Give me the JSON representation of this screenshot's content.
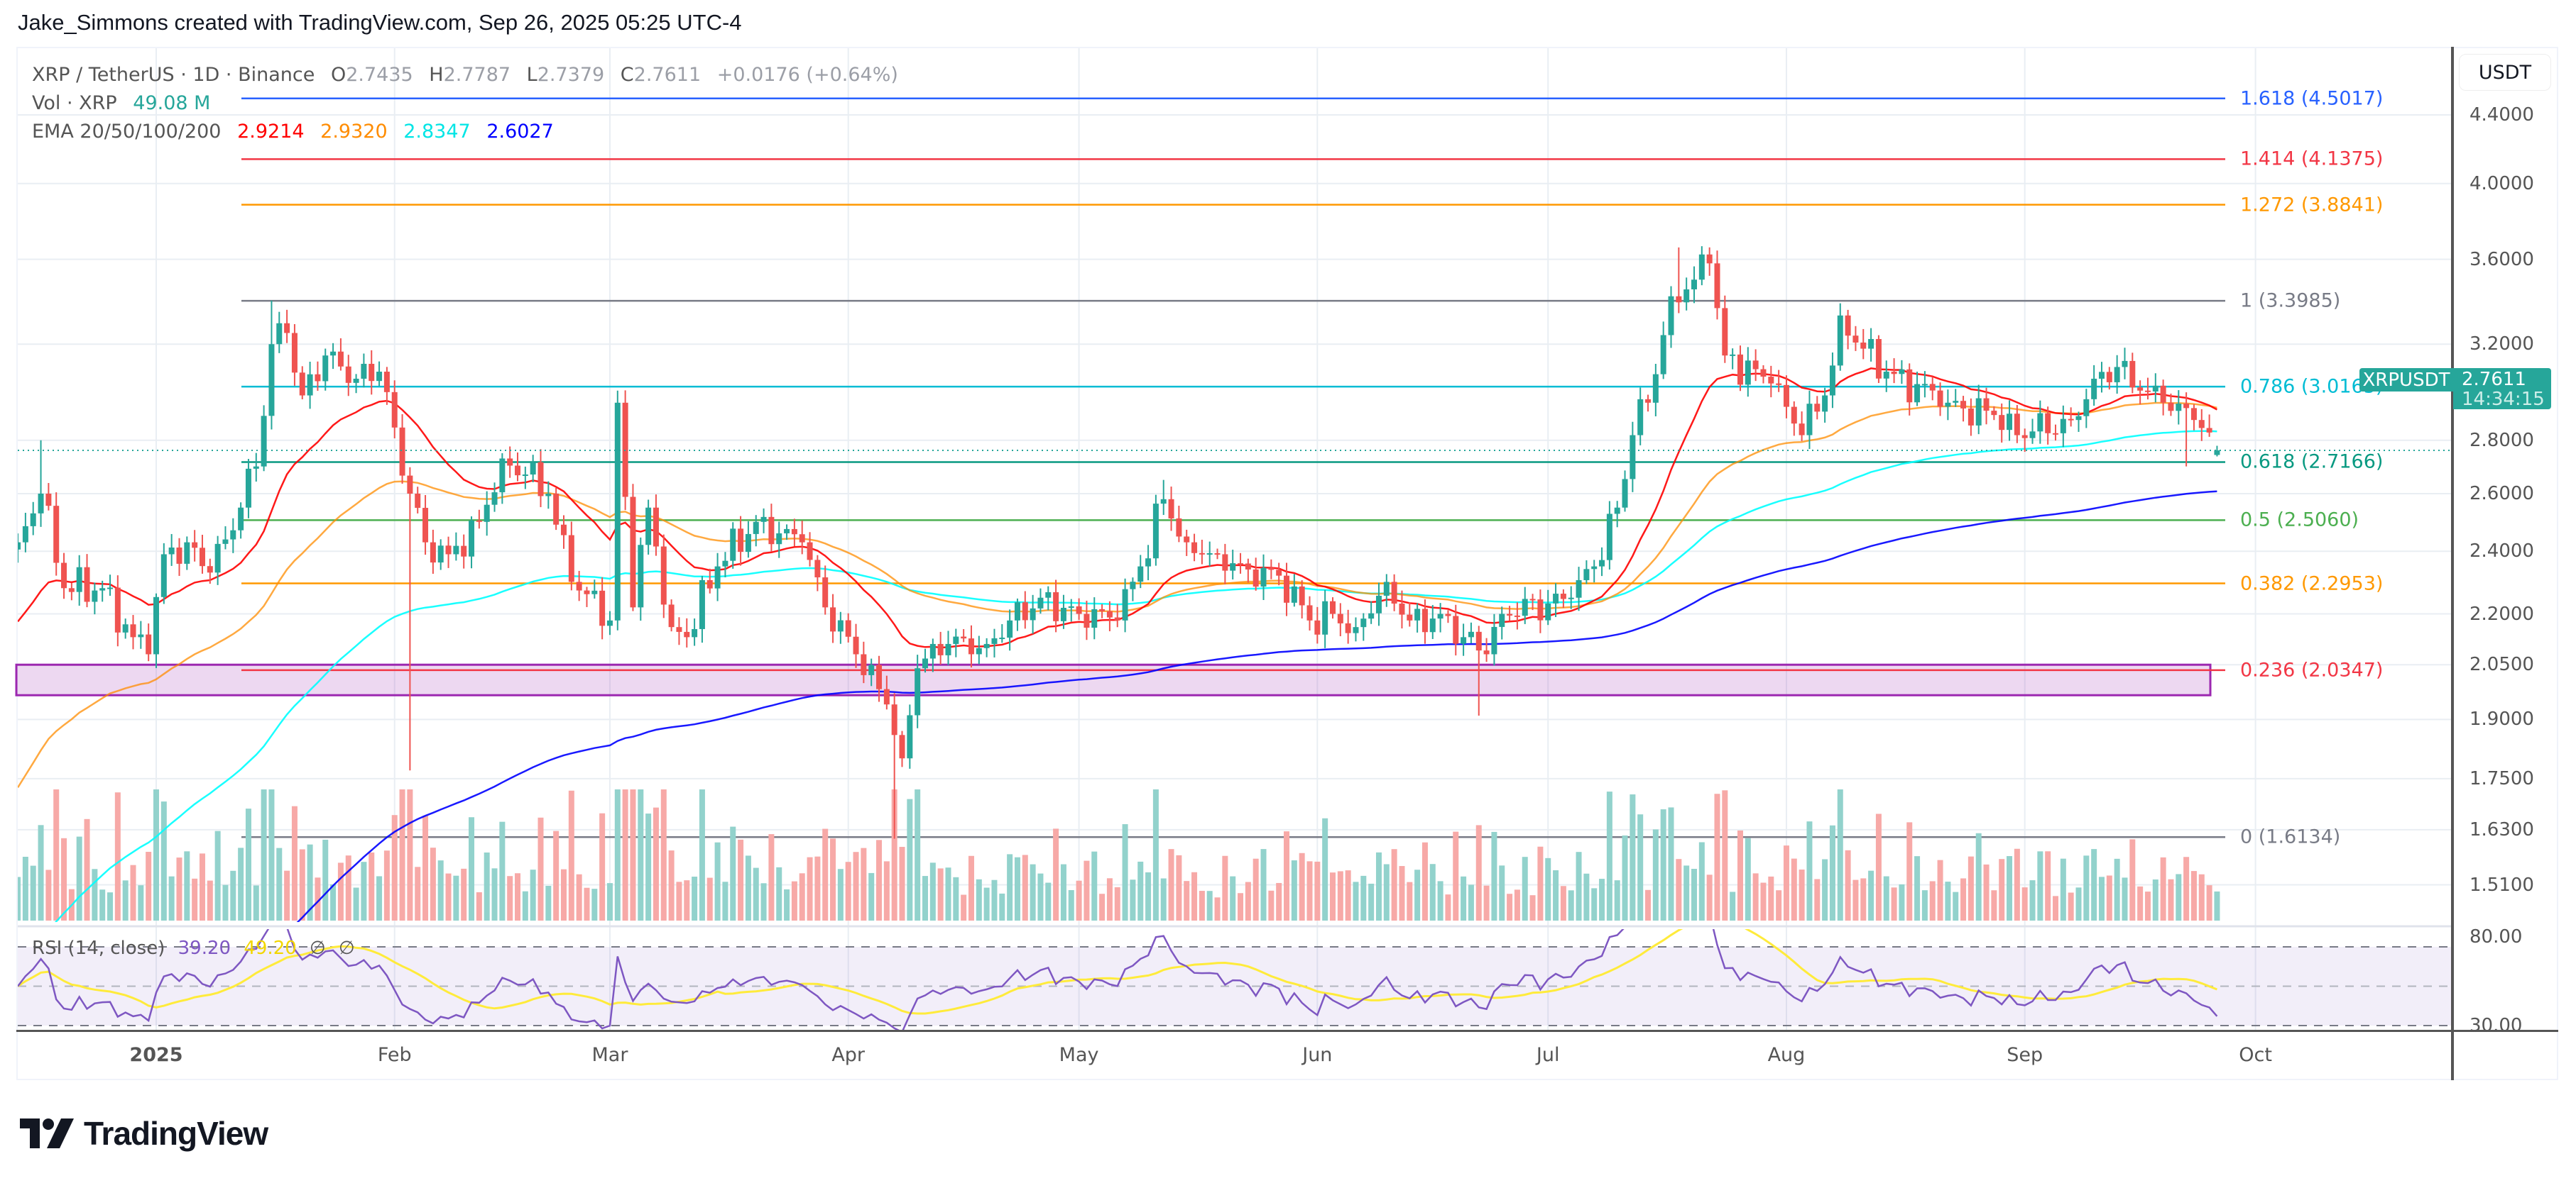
{
  "credit": "Jake_Simmons created with TradingView.com, Sep 26, 2025 05:25 UTC-4",
  "legend": {
    "symbol": "XRP / TetherUS · 1D · Binance",
    "o_label": "O",
    "o": "2.7435",
    "h_label": "H",
    "h": "2.7787",
    "l_label": "L",
    "l": "2.7379",
    "c_label": "C",
    "c": "2.7611",
    "change": "+0.0176 (+0.64%)",
    "vol_label": "Vol · XRP",
    "vol": "49.08 M",
    "ema_label": "EMA 20/50/100/200",
    "ema_values": [
      "2.9214",
      "2.9320",
      "2.8347",
      "2.6027"
    ]
  },
  "colors": {
    "up": "#26a69a",
    "down": "#ef5350",
    "vol_up": "#92d2cc",
    "vol_down": "#f7a9a7",
    "ema20": "#ff0000",
    "ema50": "#ff8c00",
    "ema100": "#00ffff",
    "ema200": "#0000ff",
    "rsi": "#7e57c2",
    "rsi_ma": "#ffeb3b",
    "zone": "#9c27b0",
    "grid": "#e9eef3"
  },
  "price_axis": {
    "currency": "USDT",
    "scale": "log",
    "ticks": [
      "4.4000",
      "4.0000",
      "3.6000",
      "3.2000",
      "2.8000",
      "2.6000",
      "2.4000",
      "2.2000",
      "2.0500",
      "1.9000",
      "1.7500",
      "1.6300",
      "1.5100"
    ],
    "last_symbol": "XRPUSDT",
    "last_price": "2.7611",
    "countdown": "14:34:15"
  },
  "rsi_axis": {
    "ticks": [
      "80.00",
      "30.00"
    ],
    "upper_band": 70,
    "middle_band": 50,
    "lower_band": 30
  },
  "rsi_legend": {
    "label": "RSI (14, close)",
    "rsi": "39.20",
    "ma": "49.20",
    "n1": "∅",
    "n2": "∅"
  },
  "time_axis": [
    {
      "label": "2025",
      "date": "2025-01-01",
      "bold": true
    },
    {
      "label": "Feb",
      "date": "2025-02-01"
    },
    {
      "label": "Mar",
      "date": "2025-03-01"
    },
    {
      "label": "Apr",
      "date": "2025-04-01"
    },
    {
      "label": "May",
      "date": "2025-05-01"
    },
    {
      "label": "Jun",
      "date": "2025-06-01"
    },
    {
      "label": "Jul",
      "date": "2025-07-01"
    },
    {
      "label": "Aug",
      "date": "2025-08-01"
    },
    {
      "label": "Sep",
      "date": "2025-09-01"
    },
    {
      "label": "Oct",
      "date": "2025-10-01"
    }
  ],
  "fib_levels": [
    {
      "label": "1.618 (4.5017)",
      "price": 4.5017,
      "color": "#2962ff"
    },
    {
      "label": "1.414 (4.1375)",
      "price": 4.1375,
      "color": "#f23645"
    },
    {
      "label": "1.272 (3.8841)",
      "price": 3.8841,
      "color": "#ff9800"
    },
    {
      "label": "1 (3.3985)",
      "price": 3.3985,
      "color": "#787b86"
    },
    {
      "label": "0.786 (3.0165)",
      "price": 3.0165,
      "color": "#00bcd4"
    },
    {
      "label": "0.618 (2.7166)",
      "price": 2.7166,
      "color": "#089981"
    },
    {
      "label": "0.5 (2.5060)",
      "price": 2.506,
      "color": "#4caf50"
    },
    {
      "label": "0.382 (2.2953)",
      "price": 2.2953,
      "color": "#ff9800"
    },
    {
      "label": "0.236 (2.0347)",
      "price": 2.0347,
      "color": "#f23645"
    },
    {
      "label": "0 (1.6134)",
      "price": 1.6134,
      "color": "#787b86"
    }
  ],
  "support_zone": {
    "top": 2.05,
    "bottom": 1.965
  },
  "chart_data": {
    "type": "candlestick",
    "title": "XRP / TetherUS · 1D · Binance",
    "x_range": [
      "2024-12-14",
      "2025-09-26"
    ],
    "y_scale": "log",
    "ylim": [
      1.45,
      4.6
    ],
    "grid": true,
    "approx_closes": [
      [
        "2024-12-14",
        2.43
      ],
      [
        "2024-12-17",
        2.6
      ],
      [
        "2024-12-20",
        2.28
      ],
      [
        "2024-12-25",
        2.28
      ],
      [
        "2024-12-29",
        2.13
      ],
      [
        "2024-12-31",
        2.08
      ],
      [
        "2025-01-02",
        2.39
      ],
      [
        "2025-01-05",
        2.43
      ],
      [
        "2025-01-08",
        2.33
      ],
      [
        "2025-01-12",
        2.55
      ],
      [
        "2025-01-14",
        2.7
      ],
      [
        "2025-01-16",
        3.2
      ],
      [
        "2025-01-18",
        3.25
      ],
      [
        "2025-01-20",
        2.98
      ],
      [
        "2025-01-23",
        3.15
      ],
      [
        "2025-01-27",
        3.05
      ],
      [
        "2025-01-30",
        3.08
      ],
      [
        "2025-02-01",
        2.85
      ],
      [
        "2025-02-03",
        2.6
      ],
      [
        "2025-02-05",
        2.43
      ],
      [
        "2025-02-08",
        2.39
      ],
      [
        "2025-02-12",
        2.5
      ],
      [
        "2025-02-15",
        2.73
      ],
      [
        "2025-02-18",
        2.67
      ],
      [
        "2025-02-21",
        2.6
      ],
      [
        "2025-02-24",
        2.3
      ],
      [
        "2025-03-01",
        2.18
      ],
      [
        "2025-03-02",
        2.95
      ],
      [
        "2025-03-04",
        2.22
      ],
      [
        "2025-03-06",
        2.55
      ],
      [
        "2025-03-09",
        2.16
      ],
      [
        "2025-03-11",
        2.13
      ],
      [
        "2025-03-15",
        2.35
      ],
      [
        "2025-03-20",
        2.5
      ],
      [
        "2025-03-26",
        2.43
      ],
      [
        "2025-03-29",
        2.22
      ],
      [
        "2025-04-02",
        2.08
      ],
      [
        "2025-04-06",
        1.94
      ],
      [
        "2025-04-08",
        1.8
      ],
      [
        "2025-04-10",
        2.04
      ],
      [
        "2025-04-14",
        2.11
      ],
      [
        "2025-04-19",
        2.11
      ],
      [
        "2025-04-22",
        2.18
      ],
      [
        "2025-04-26",
        2.25
      ],
      [
        "2025-05-01",
        2.2
      ],
      [
        "2025-05-06",
        2.18
      ],
      [
        "2025-05-09",
        2.35
      ],
      [
        "2025-05-12",
        2.58
      ],
      [
        "2025-05-15",
        2.43
      ],
      [
        "2025-05-19",
        2.39
      ],
      [
        "2025-05-23",
        2.34
      ],
      [
        "2025-05-27",
        2.32
      ],
      [
        "2025-05-31",
        2.18
      ],
      [
        "2025-06-03",
        2.2
      ],
      [
        "2025-06-06",
        2.16
      ],
      [
        "2025-06-10",
        2.3
      ],
      [
        "2025-06-13",
        2.18
      ],
      [
        "2025-06-17",
        2.2
      ],
      [
        "2025-06-20",
        2.13
      ],
      [
        "2025-06-23",
        2.08
      ],
      [
        "2025-06-25",
        2.2
      ],
      [
        "2025-07-04",
        2.25
      ],
      [
        "2025-07-07",
        2.35
      ],
      [
        "2025-07-10",
        2.55
      ],
      [
        "2025-07-12",
        2.82
      ],
      [
        "2025-07-14",
        2.95
      ],
      [
        "2025-07-17",
        3.42
      ],
      [
        "2025-07-20",
        3.5
      ],
      [
        "2025-07-22",
        3.58
      ],
      [
        "2025-07-24",
        3.15
      ],
      [
        "2025-07-30",
        3.03
      ],
      [
        "2025-08-03",
        2.82
      ],
      [
        "2025-08-06",
        2.98
      ],
      [
        "2025-08-08",
        3.33
      ],
      [
        "2025-08-11",
        3.18
      ],
      [
        "2025-08-14",
        3.08
      ],
      [
        "2025-08-22",
        2.95
      ],
      [
        "2025-08-28",
        2.9
      ],
      [
        "2025-08-31",
        2.82
      ],
      [
        "2025-09-07",
        2.88
      ],
      [
        "2025-09-10",
        3.05
      ],
      [
        "2025-09-13",
        3.1
      ],
      [
        "2025-09-16",
        3.0
      ],
      [
        "2025-09-19",
        2.95
      ],
      [
        "2025-09-23",
        2.88
      ],
      [
        "2025-09-26",
        2.7611
      ]
    ],
    "notable_wicks": [
      {
        "date": "2024-12-17",
        "high": 2.8
      },
      {
        "date": "2025-01-16",
        "high": 3.4
      },
      {
        "date": "2025-02-03",
        "low": 1.77
      },
      {
        "date": "2025-03-02",
        "high": 3.0
      },
      {
        "date": "2025-04-07",
        "low": 1.61
      },
      {
        "date": "2025-05-12",
        "high": 2.65
      },
      {
        "date": "2025-06-22",
        "low": 1.91
      },
      {
        "date": "2025-07-18",
        "high": 3.66
      },
      {
        "date": "2025-09-22",
        "low": 2.7
      }
    ]
  }
}
